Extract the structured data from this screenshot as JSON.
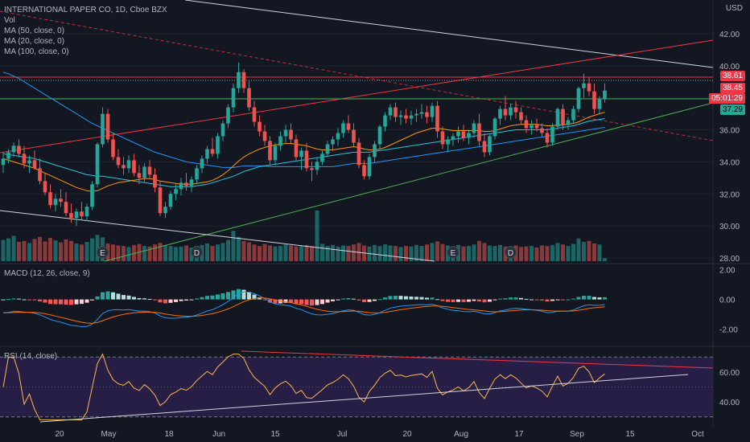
{
  "legend": {
    "symbol": "INTERNATIONAL PAPER CO, 1D, Cboe BZX",
    "vol": "Vol",
    "ma50": "MA (50, close, 0)",
    "ma20": "MA (20, close, 0)",
    "ma100": "MA (100, close, 0)",
    "macd": "MACD (12, 26, close, 9)",
    "rsi": "RSI (14, close)"
  },
  "currency": "USD",
  "price_labels": {
    "red_line": "38.61",
    "last": "38.45",
    "countdown": "05:01:29",
    "green_line": "37.29"
  },
  "colors": {
    "background": "#131722",
    "up": "#26a69a",
    "down": "#ef5350",
    "ma50": "#2196f3",
    "ma20": "#ff9800",
    "ma100": "#26c6da",
    "macd": "#2196f3",
    "signal": "#ff6d00",
    "rsi": "#ffb74d",
    "rsi_band": "#2a1f4a",
    "trend_red": "#f23645",
    "trend_green": "#4caf50",
    "trend_white": "#d1d4dc"
  },
  "chart_data": {
    "type": "candlestick",
    "price_axis": {
      "ticks": [
        "42.00",
        "40.00",
        "38.00",
        "36.00",
        "34.00",
        "32.00",
        "30.00",
        "28.00"
      ],
      "ylim": [
        27.8,
        43.2
      ]
    },
    "macd_axis": {
      "ticks": [
        "2.00",
        "0.00",
        "-2.00"
      ]
    },
    "rsi_axis": {
      "ticks": [
        "60.00",
        "40.00"
      ],
      "bands": [
        30,
        70
      ]
    },
    "x_labels": [
      "20",
      "May",
      "18",
      "Jun",
      "15",
      "Jul",
      "20",
      "Aug",
      "17",
      "Sep",
      "15",
      "Oct"
    ],
    "earnings_markers": [
      "E",
      "D",
      "E",
      "D"
    ],
    "candles_ohlc": [
      [
        33.8,
        34.6,
        33.3,
        34.2
      ],
      [
        34.2,
        34.8,
        33.9,
        34.6
      ],
      [
        34.6,
        35.2,
        34.3,
        35.0
      ],
      [
        35.0,
        35.4,
        34.3,
        34.5
      ],
      [
        34.5,
        35.0,
        33.6,
        33.9
      ],
      [
        33.9,
        34.4,
        33.3,
        34.1
      ],
      [
        34.1,
        34.7,
        33.5,
        33.6
      ],
      [
        33.6,
        34.2,
        32.6,
        32.8
      ],
      [
        32.8,
        33.3,
        31.9,
        32.1
      ],
      [
        32.1,
        32.6,
        31.1,
        31.3
      ],
      [
        31.3,
        32.0,
        30.9,
        31.7
      ],
      [
        31.7,
        32.3,
        31.2,
        31.5
      ],
      [
        31.5,
        32.1,
        30.6,
        30.8
      ],
      [
        30.8,
        31.4,
        30.2,
        30.5
      ],
      [
        30.5,
        31.1,
        30.0,
        30.9
      ],
      [
        30.9,
        31.5,
        30.4,
        30.6
      ],
      [
        30.6,
        31.4,
        30.3,
        31.2
      ],
      [
        31.2,
        32.8,
        31.0,
        32.6
      ],
      [
        32.6,
        35.2,
        32.4,
        35.1
      ],
      [
        35.1,
        37.4,
        34.9,
        37.0
      ],
      [
        37.0,
        37.3,
        35.2,
        35.4
      ],
      [
        35.4,
        35.8,
        34.1,
        34.3
      ],
      [
        34.3,
        34.8,
        33.6,
        33.8
      ],
      [
        33.8,
        34.3,
        33.2,
        33.6
      ],
      [
        33.6,
        34.4,
        33.3,
        34.1
      ],
      [
        34.1,
        34.5,
        33.1,
        33.3
      ],
      [
        33.3,
        33.8,
        32.6,
        33.0
      ],
      [
        33.0,
        33.9,
        32.7,
        33.7
      ],
      [
        33.7,
        34.1,
        33.0,
        33.2
      ],
      [
        33.2,
        33.6,
        32.1,
        32.4
      ],
      [
        32.4,
        32.8,
        30.6,
        30.8
      ],
      [
        30.8,
        31.5,
        30.5,
        31.2
      ],
      [
        31.2,
        32.2,
        31.0,
        32.0
      ],
      [
        32.0,
        32.6,
        31.6,
        32.3
      ],
      [
        32.3,
        33.0,
        31.9,
        32.7
      ],
      [
        32.7,
        33.3,
        32.2,
        32.5
      ],
      [
        32.5,
        33.1,
        32.1,
        32.9
      ],
      [
        32.9,
        33.8,
        32.6,
        33.6
      ],
      [
        33.6,
        34.4,
        33.3,
        34.2
      ],
      [
        34.2,
        35.0,
        33.9,
        34.8
      ],
      [
        34.8,
        35.5,
        34.3,
        34.5
      ],
      [
        34.5,
        35.8,
        34.2,
        35.6
      ],
      [
        35.6,
        36.6,
        35.3,
        36.4
      ],
      [
        36.4,
        37.6,
        36.1,
        37.4
      ],
      [
        37.4,
        38.9,
        37.1,
        38.6
      ],
      [
        38.6,
        40.2,
        38.3,
        39.6
      ],
      [
        39.6,
        39.8,
        38.3,
        38.6
      ],
      [
        38.6,
        39.1,
        37.2,
        37.4
      ],
      [
        37.4,
        37.8,
        36.2,
        36.5
      ],
      [
        36.5,
        36.9,
        35.6,
        35.9
      ],
      [
        35.9,
        36.3,
        35.0,
        35.3
      ],
      [
        35.3,
        35.6,
        33.8,
        34.1
      ],
      [
        34.1,
        35.2,
        33.8,
        35.0
      ],
      [
        35.0,
        35.9,
        34.7,
        35.6
      ],
      [
        35.6,
        36.3,
        35.2,
        36.0
      ],
      [
        36.0,
        36.4,
        35.1,
        35.4
      ],
      [
        35.4,
        35.7,
        34.1,
        34.3
      ],
      [
        34.3,
        34.9,
        33.5,
        34.7
      ],
      [
        34.7,
        35.2,
        33.4,
        33.6
      ],
      [
        33.6,
        34.0,
        32.8,
        33.5
      ],
      [
        33.5,
        34.2,
        33.2,
        34.0
      ],
      [
        34.0,
        34.7,
        33.8,
        34.5
      ],
      [
        34.5,
        35.3,
        34.3,
        35.1
      ],
      [
        35.1,
        35.6,
        34.7,
        35.4
      ],
      [
        35.4,
        36.1,
        35.0,
        35.8
      ],
      [
        35.8,
        36.6,
        35.5,
        36.4
      ],
      [
        36.4,
        36.9,
        35.8,
        36.0
      ],
      [
        36.0,
        36.4,
        34.9,
        35.2
      ],
      [
        35.2,
        35.5,
        33.6,
        33.8
      ],
      [
        33.8,
        34.1,
        32.9,
        33.1
      ],
      [
        33.1,
        34.5,
        32.9,
        34.3
      ],
      [
        34.3,
        35.3,
        34.0,
        35.1
      ],
      [
        35.1,
        36.3,
        34.8,
        36.2
      ],
      [
        36.2,
        37.1,
        35.9,
        36.9
      ],
      [
        36.9,
        37.6,
        36.6,
        37.4
      ],
      [
        37.4,
        37.7,
        36.5,
        36.8
      ],
      [
        36.8,
        37.2,
        36.3,
        36.9
      ],
      [
        36.9,
        37.3,
        36.4,
        36.7
      ],
      [
        36.7,
        37.2,
        36.3,
        36.9
      ],
      [
        36.9,
        37.3,
        36.5,
        37.0
      ],
      [
        37.0,
        37.6,
        36.7,
        37.1
      ],
      [
        37.1,
        37.5,
        36.4,
        36.8
      ],
      [
        36.8,
        37.7,
        36.5,
        37.5
      ],
      [
        37.5,
        37.8,
        35.5,
        35.9
      ],
      [
        35.9,
        36.2,
        34.8,
        35.1
      ],
      [
        35.1,
        35.6,
        34.6,
        35.4
      ],
      [
        35.4,
        35.8,
        35.0,
        35.6
      ],
      [
        35.6,
        36.2,
        35.2,
        35.9
      ],
      [
        35.9,
        36.3,
        35.3,
        35.5
      ],
      [
        35.5,
        36.0,
        35.1,
        35.8
      ],
      [
        35.8,
        36.6,
        35.5,
        36.4
      ],
      [
        36.4,
        37.0,
        35.0,
        35.3
      ],
      [
        35.3,
        35.8,
        34.3,
        34.6
      ],
      [
        34.6,
        35.7,
        34.4,
        35.6
      ],
      [
        35.6,
        36.8,
        35.4,
        36.7
      ],
      [
        36.7,
        37.5,
        36.3,
        37.3
      ],
      [
        37.3,
        38.1,
        36.6,
        36.9
      ],
      [
        36.9,
        37.6,
        36.6,
        37.4
      ],
      [
        37.4,
        37.8,
        36.7,
        37.1
      ],
      [
        37.1,
        37.4,
        36.3,
        36.6
      ],
      [
        36.6,
        36.9,
        35.8,
        36.1
      ],
      [
        36.1,
        36.6,
        35.7,
        36.3
      ],
      [
        36.3,
        36.7,
        35.9,
        36.1
      ],
      [
        36.1,
        36.4,
        35.6,
        35.8
      ],
      [
        35.8,
        36.1,
        34.9,
        35.2
      ],
      [
        35.2,
        36.4,
        35.0,
        36.2
      ],
      [
        36.2,
        37.4,
        36.0,
        37.3
      ],
      [
        37.3,
        37.6,
        36.0,
        36.3
      ],
      [
        36.3,
        36.8,
        36.0,
        36.6
      ],
      [
        36.6,
        37.5,
        36.4,
        37.3
      ],
      [
        37.3,
        38.7,
        37.1,
        38.6
      ],
      [
        38.6,
        39.5,
        38.0,
        38.9
      ],
      [
        38.9,
        39.3,
        38.1,
        38.4
      ],
      [
        38.4,
        38.9,
        37.0,
        37.3
      ],
      [
        37.3,
        38.1,
        37.0,
        37.9
      ],
      [
        37.9,
        38.9,
        37.7,
        38.45
      ]
    ],
    "volume_scale_max": 1.0,
    "volume": [
      0.42,
      0.45,
      0.5,
      0.38,
      0.4,
      0.36,
      0.44,
      0.48,
      0.39,
      0.46,
      0.41,
      0.37,
      0.43,
      0.4,
      0.35,
      0.33,
      0.38,
      0.45,
      0.52,
      0.47,
      0.35,
      0.33,
      0.31,
      0.3,
      0.28,
      0.32,
      0.34,
      0.3,
      0.29,
      0.33,
      0.36,
      0.31,
      0.3,
      0.28,
      0.29,
      0.31,
      0.27,
      0.3,
      0.32,
      0.35,
      0.3,
      0.33,
      0.36,
      0.42,
      0.6,
      0.48,
      0.4,
      0.37,
      0.33,
      0.3,
      0.34,
      0.31,
      0.29,
      0.3,
      0.33,
      0.31,
      0.29,
      0.3,
      0.32,
      0.3,
      1.0,
      0.34,
      0.3,
      0.32,
      0.29,
      0.31,
      0.3,
      0.33,
      0.36,
      0.31,
      0.29,
      0.32,
      0.3,
      0.33,
      0.31,
      0.3,
      0.28,
      0.3,
      0.29,
      0.32,
      0.3,
      0.33,
      0.36,
      0.39,
      0.34,
      0.31,
      0.3,
      0.32,
      0.29,
      0.3,
      0.33,
      0.4,
      0.36,
      0.31,
      0.3,
      0.32,
      0.29,
      0.3,
      0.31,
      0.28,
      0.29,
      0.3,
      0.27,
      0.31,
      0.3,
      0.32,
      0.36,
      0.33,
      0.3,
      0.34,
      0.45,
      0.38,
      0.4,
      0.35,
      0.33,
      0.06
    ],
    "ma50": [
      34.5,
      34.45,
      34.4,
      34.35,
      34.3,
      34.25,
      34.2,
      34.1,
      34.0,
      33.9,
      33.8,
      33.7,
      33.6,
      33.5,
      33.4,
      33.3,
      33.2,
      33.15,
      33.1,
      33.1,
      33.05,
      33.0,
      32.95,
      32.9,
      32.85,
      32.8,
      32.75,
      32.7,
      32.65,
      32.6,
      32.55,
      32.5,
      32.45,
      32.45,
      32.45,
      32.45,
      32.45,
      32.5,
      32.55,
      32.6,
      32.7,
      32.8,
      32.9,
      33.0,
      33.1,
      33.25,
      33.4,
      33.5,
      33.6,
      33.7,
      33.75,
      33.8,
      33.85,
      33.9,
      33.95,
      34.0,
      34.05,
      34.1,
      34.15,
      34.2,
      34.25,
      34.3,
      34.35,
      34.4,
      34.45,
      34.5,
      34.55,
      34.6,
      34.6,
      34.6,
      34.6,
      34.65,
      34.7,
      34.75,
      34.8,
      34.85,
      34.9,
      34.95,
      35.0,
      35.05,
      35.1,
      35.15,
      35.2,
      35.25,
      35.3,
      35.35,
      35.4,
      35.45,
      35.5,
      35.55,
      35.6,
      35.65,
      35.7,
      35.75,
      35.8,
      35.85,
      35.9,
      35.95,
      36.0,
      36.0,
      36.0,
      36.0,
      36.0,
      36.0,
      36.0,
      36.05,
      36.1,
      36.15,
      36.2,
      36.25,
      36.35,
      36.45,
      36.55,
      36.6,
      36.65,
      36.7
    ],
    "ma20": [
      34.2,
      34.1,
      34.0,
      33.9,
      33.8,
      33.7,
      33.6,
      33.45,
      33.3,
      33.15,
      33.0,
      32.85,
      32.7,
      32.55,
      32.4,
      32.3,
      32.2,
      32.15,
      32.2,
      32.35,
      32.5,
      32.6,
      32.7,
      32.75,
      32.8,
      32.85,
      32.9,
      32.95,
      32.95,
      32.9,
      32.8,
      32.75,
      32.7,
      32.65,
      32.6,
      32.6,
      32.6,
      32.65,
      32.7,
      32.75,
      32.85,
      33.0,
      33.2,
      33.45,
      33.75,
      34.05,
      34.3,
      34.5,
      34.65,
      34.8,
      34.9,
      35.0,
      35.05,
      35.1,
      35.15,
      35.15,
      35.1,
      35.05,
      35.0,
      34.9,
      34.8,
      34.75,
      34.75,
      34.75,
      34.8,
      34.85,
      34.9,
      34.95,
      34.9,
      34.8,
      34.75,
      34.75,
      34.8,
      34.9,
      35.05,
      35.2,
      35.35,
      35.5,
      35.65,
      35.8,
      35.9,
      36.0,
      36.1,
      36.1,
      36.05,
      36.0,
      35.95,
      35.95,
      35.95,
      35.95,
      35.95,
      35.95,
      35.9,
      35.9,
      35.95,
      36.05,
      36.15,
      36.25,
      36.3,
      36.35,
      36.35,
      36.35,
      36.35,
      36.3,
      36.25,
      36.25,
      36.3,
      36.3,
      36.35,
      36.4,
      36.5,
      36.65,
      36.8,
      36.9,
      37.0,
      37.1
    ],
    "ma100": [
      39.6,
      39.5,
      39.35,
      39.2,
      39.0,
      38.8,
      38.6,
      38.4,
      38.2,
      38.0,
      37.8,
      37.6,
      37.4,
      37.2,
      37.0,
      36.8,
      36.6,
      36.4,
      36.25,
      36.1,
      35.95,
      35.8,
      35.65,
      35.5,
      35.35,
      35.2,
      35.05,
      34.9,
      34.75,
      34.6,
      34.5,
      34.4,
      34.3,
      34.2,
      34.1,
      34.0,
      33.95,
      33.9,
      33.85,
      33.8,
      33.75,
      33.7,
      33.65,
      33.65,
      33.65,
      33.7,
      33.75,
      33.75,
      33.75,
      33.75,
      33.75,
      33.7,
      33.7,
      33.7,
      33.7,
      33.7,
      33.7,
      33.7,
      33.7,
      33.7,
      33.7,
      33.7,
      33.7,
      33.7,
      33.75,
      33.8,
      33.85,
      33.9,
      33.9,
      33.9,
      33.9,
      33.95,
      34.0,
      34.05,
      34.1,
      34.15,
      34.2,
      34.25,
      34.3,
      34.35,
      34.4,
      34.45,
      34.5,
      34.55,
      34.6,
      34.65,
      34.7,
      34.75,
      34.8,
      34.85,
      34.9,
      34.95,
      35.0,
      35.05,
      35.1,
      35.15,
      35.2,
      35.25,
      35.3,
      35.35,
      35.4,
      35.45,
      35.5,
      35.55,
      35.6,
      35.65,
      35.7,
      35.75,
      35.8,
      35.85,
      35.9,
      35.95,
      36.0,
      36.05,
      36.1,
      36.15
    ]
  }
}
